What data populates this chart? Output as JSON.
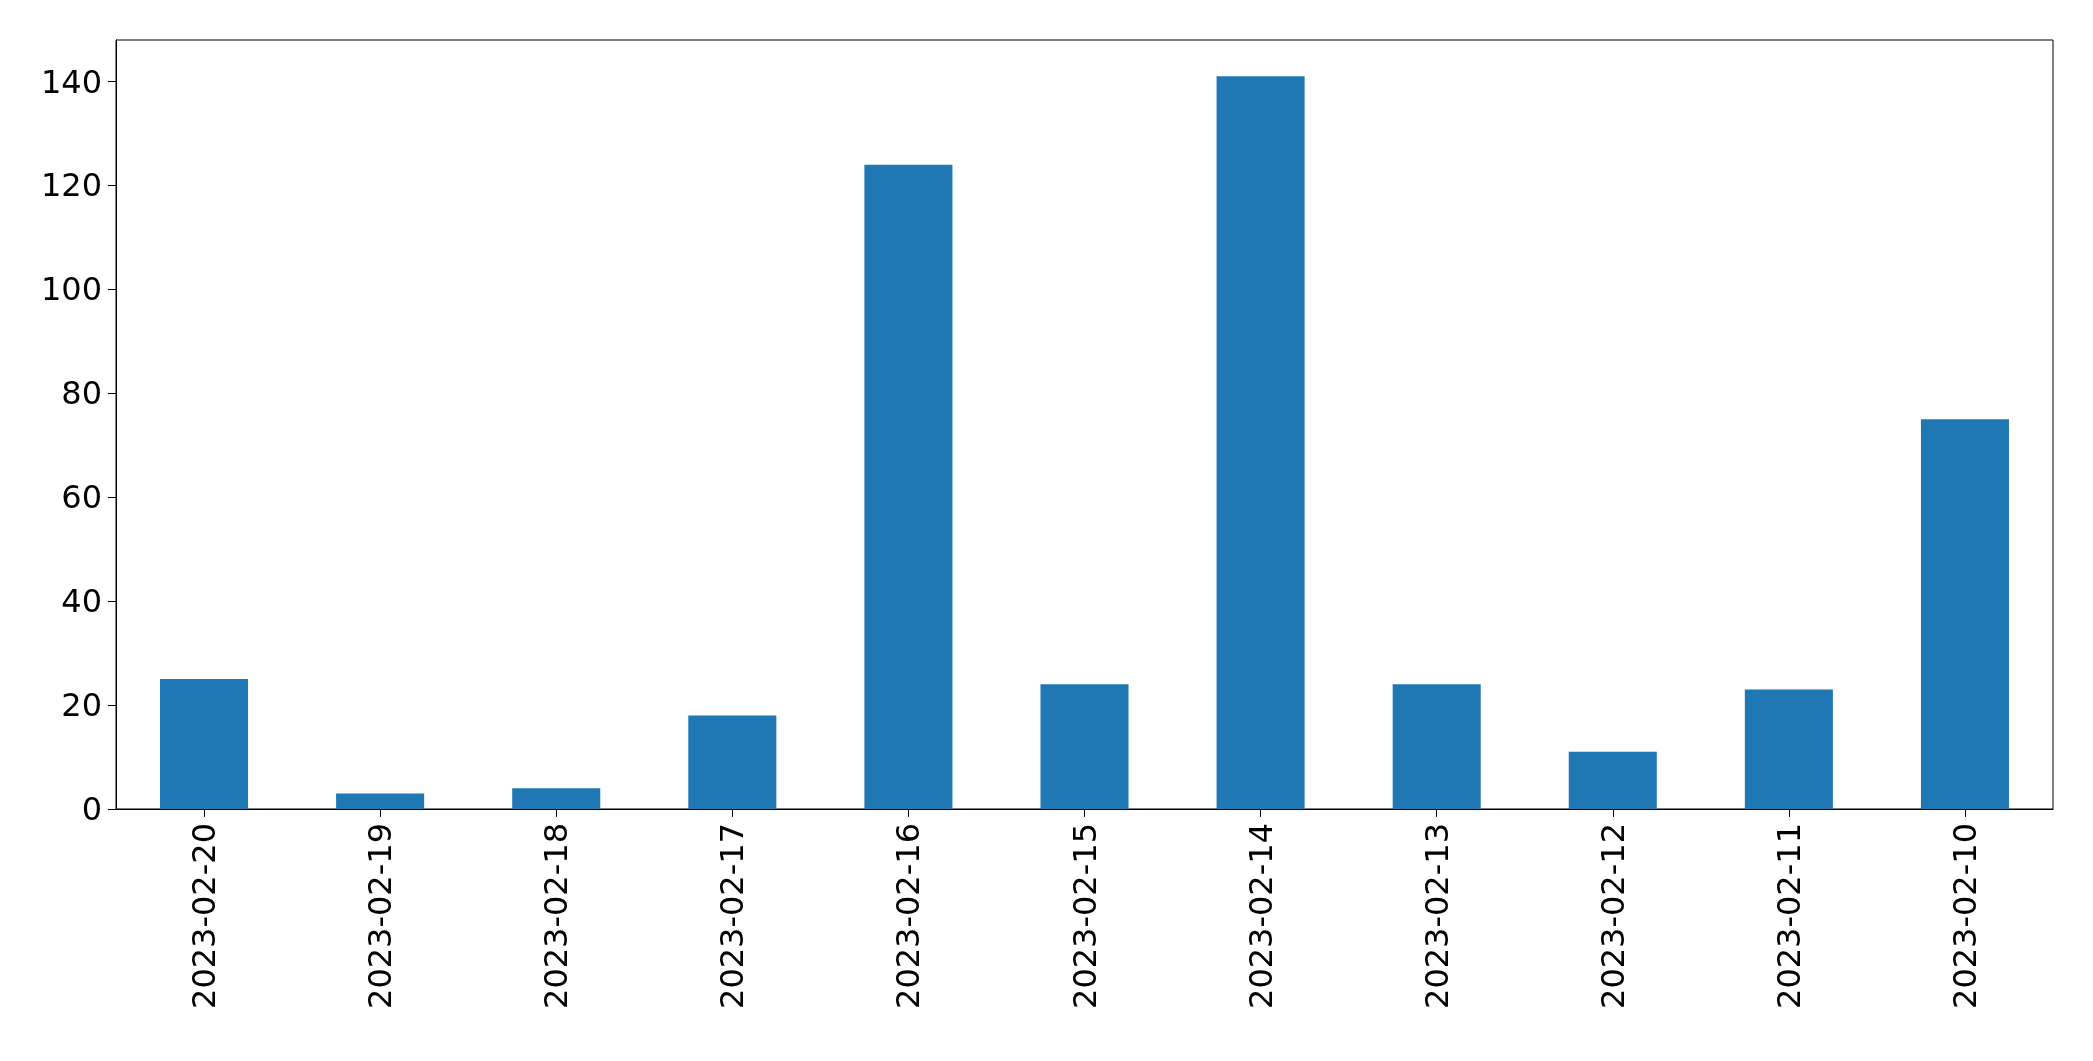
{
  "chart_data": {
    "type": "bar",
    "categories": [
      "2023-02-20",
      "2023-02-19",
      "2023-02-18",
      "2023-02-17",
      "2023-02-16",
      "2023-02-15",
      "2023-02-14",
      "2023-02-13",
      "2023-02-12",
      "2023-02-11",
      "2023-02-10"
    ],
    "values": [
      25,
      3,
      4,
      18,
      124,
      24,
      141,
      24,
      11,
      23,
      75
    ],
    "color": "#1f77b4",
    "ylim": [
      0,
      148
    ],
    "yticks": [
      0,
      20,
      40,
      60,
      80,
      100,
      120,
      140
    ],
    "grid": false
  }
}
